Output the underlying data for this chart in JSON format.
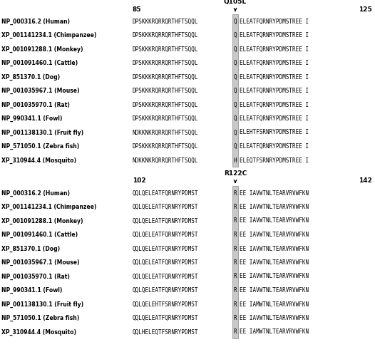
{
  "top_section": {
    "left_num": "85",
    "right_num": "125",
    "mutation_label": "Q105L",
    "species": [
      "NP_000316.2 (Human)",
      "XP_001141234.1 (Chimpanzee)",
      "XP_001091288.1 (Monkey)",
      "NP_001091460.1 (Cattle)",
      "XP_851370.1 (Dog)",
      "NP_001035967.1 (Mouse)",
      "NP_001035970.1 (Rat)",
      "NP_990341.1 (Fowl)",
      "NP_001138130.1 (Fruit fly)",
      "NP_571050.1 (Zebra fish)",
      "XP_310944.4 (Mosquito)"
    ],
    "left_seq": [
      "DPSKKKRQRRQRTHFTSQQL",
      "DPSKKKRQRRQRTHFTSQQL",
      "DPSKKKRQRRQRTHFTSQQL",
      "DPSKKKRQRRQRTHFTSQQL",
      "DPSKKKRQRRQRTHFTSQQL",
      "DPSKKKRQRRQRTHFTSQQL",
      "DPSKKKRQRRQRTHFTSQQL",
      "DPSKKKRQRRQRTHFTSQQL",
      "NDKKNKRQRRQRTHFTSQQL",
      "DPSKKKRQRRQRTHFTSQQL",
      "NDKKNKRQRRQRTHFTSQQL"
    ],
    "highlight_char": [
      "Q",
      "Q",
      "Q",
      "Q",
      "Q",
      "Q",
      "Q",
      "Q",
      "Q",
      "Q",
      "H"
    ],
    "right_seq": [
      "ELEATFQRNRYPDMSTREE I",
      "ELEATFQRNRYPDMSTREE I",
      "ELEATFQRNRYPDMSTREE I",
      "ELEATFQRNRYPDMSTREE I",
      "ELEATFQRNRYPDMSTREE I",
      "ELEATFQRNRYPDMSTREE I",
      "ELEATFQRNRYPDMSTREE I",
      "ELEATFQRNRYPDMSTREE I",
      "ELEHTFSRNRYPDMSTREE I",
      "ELEATFQRNRYPDMSTREE I",
      "ELEQTFSRNRYPDMSTREE I"
    ]
  },
  "bottom_section": {
    "left_num": "102",
    "right_num": "142",
    "mutation_label": "R122C",
    "species": [
      "NP_000316.2 (Human)",
      "XP_001141234.1 (Chimpanzee)",
      "XP_001091288.1 (Monkey)",
      "NP_001091460.1 (Cattle)",
      "XP_851370.1 (Dog)",
      "NP_001035967.1 (Mouse)",
      "NP_001035970.1 (Rat)",
      "NP_990341.1 (Fowl)",
      "NP_001138130.1 (Fruit fly)",
      "NP_571050.1 (Zebra fish)",
      "XP_310944.4 (Mosquito)"
    ],
    "left_seq": [
      "QQLQELEATFQRNRYPDMST",
      "QQLQELEATFQRNRYPDMST",
      "QQLQELEATFQRNRYPDMST",
      "QQLQELEATFQRNRYPDMST",
      "QQLQELEATFQRNRYPDMST",
      "QQLQELEATFQRNRYPDMST",
      "QQLQELEATFQRNRYPDMST",
      "QQLQELEATFQRNRYPDMST",
      "QQLQELEHTFSRNRYPDMST",
      "QQLQELEATFQRNRYPDMST",
      "QQLHELEQTFSRNRYPDMST"
    ],
    "highlight_char": [
      "R",
      "R",
      "R",
      "R",
      "R",
      "R",
      "R",
      "R",
      "R",
      "R",
      "R"
    ],
    "right_seq": [
      "EE IAVWTNLTEARVRVWFKN",
      "EE IAVWTNLTEARVRVWFKN",
      "EE IAVWTNLTEARVRVWFKN",
      "EE IAVWTNLTEARVRVWFKN",
      "EE IAVWTNLTEARVRVWFKN",
      "EE IAVWTNLTEARVRVWFKN",
      "EE IAVWTNLTEARVRVWFKN",
      "EE IAVWTNLTEARVRVWFKN",
      "EE IAMWTNLTEARVRVWFKN",
      "EE IAVWTNLTEARVRVWFKN",
      "EE IAMWTNLTEARVRVWFKN"
    ]
  },
  "highlight_color": "#c8c8c8",
  "bg_color": "#ffffff",
  "species_font_size": 5.5,
  "seq_font_size": 5.5,
  "num_font_size": 6.5,
  "mutation_font_size": 6.5
}
